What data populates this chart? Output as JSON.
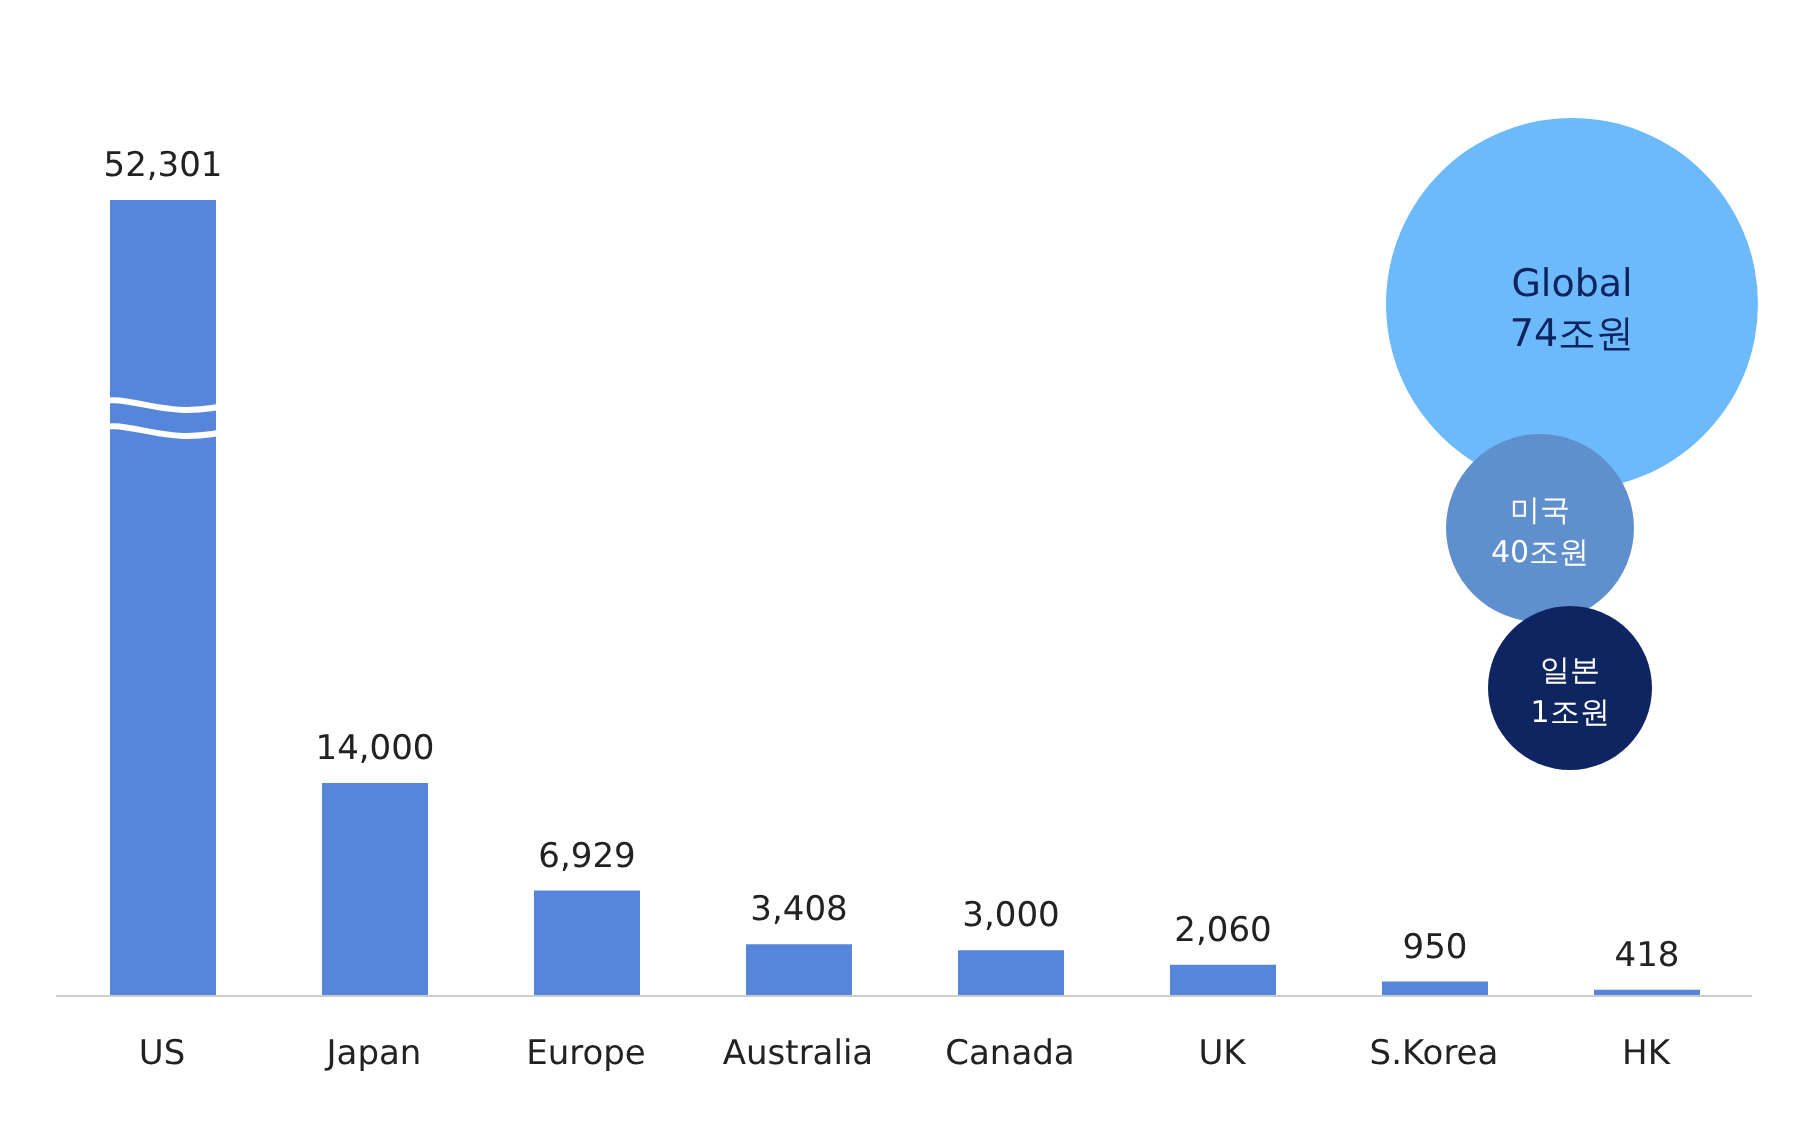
{
  "chart_data": {
    "type": "bar",
    "categories": [
      "US",
      "Japan",
      "Europe",
      "Australia",
      "Canada",
      "UK",
      "S.Korea",
      "HK"
    ],
    "values": [
      52301,
      14000,
      6929,
      3408,
      3000,
      2060,
      950,
      418
    ],
    "value_labels": [
      "52,301",
      "14,000",
      "6,929",
      "3,408",
      "3,000",
      "2,060",
      "950",
      "418"
    ],
    "color": "#5686d9",
    "tick_labels": "x",
    "annotations": [
      "Global",
      "74조원",
      "미국",
      "40조원",
      "일본",
      "1조원"
    ]
  }
}
